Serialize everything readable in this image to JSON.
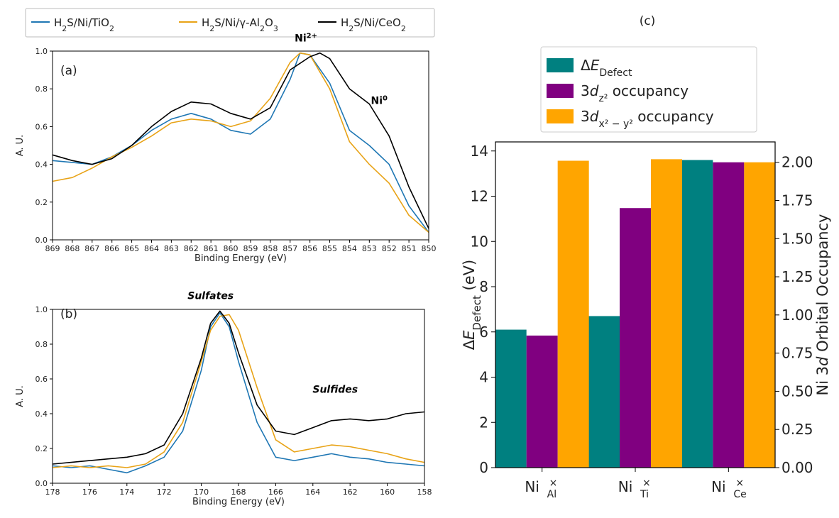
{
  "legend_top": [
    {
      "label": "H2S/Ni/TiO2",
      "parts": [
        "H",
        "2",
        "S/Ni/TiO",
        "2",
        ""
      ],
      "color": "#1f77b4"
    },
    {
      "label": "H2S/Ni/γ-Al2O3",
      "parts": [
        "H",
        "2",
        "S/Ni/γ-Al",
        "2",
        "O",
        "3"
      ],
      "color": "#e8a317"
    },
    {
      "label": "H2S/Ni/CeO2",
      "parts": [
        "H",
        "2",
        "S/Ni/CeO",
        "2",
        ""
      ],
      "color": "#000000"
    }
  ],
  "colors": {
    "bar_defect": "#008080",
    "bar_dz2": "#800080",
    "bar_dx2y2": "#ffa500"
  },
  "chart_data": [
    {
      "type": "line",
      "panel_label": "(a)",
      "xlabel": "Binding Energy (eV)",
      "ylabel": "A. U.",
      "xlim": [
        869,
        850
      ],
      "ylim": [
        0,
        1
      ],
      "xticks": [
        869,
        868,
        867,
        866,
        865,
        864,
        863,
        862,
        861,
        860,
        859,
        858,
        857,
        856,
        855,
        854,
        853,
        852,
        851,
        850
      ],
      "yticks": [
        "0.0",
        "0.2",
        "0.4",
        "0.6",
        "0.8",
        "1.0"
      ],
      "annotations": [
        {
          "text": "Ni",
          "sup": "2+",
          "x": 856.2,
          "y": 1.05
        },
        {
          "text": "Ni",
          "sup": "0",
          "x": 852.5,
          "y": 0.72
        }
      ],
      "series": [
        {
          "color": "#1f77b4",
          "x": [
            869,
            868,
            867,
            866,
            865,
            864,
            863,
            862,
            861,
            860,
            859,
            858,
            857,
            856.5,
            856,
            855,
            854,
            853,
            852,
            851,
            850
          ],
          "y": [
            0.42,
            0.41,
            0.4,
            0.44,
            0.5,
            0.58,
            0.64,
            0.67,
            0.64,
            0.58,
            0.56,
            0.64,
            0.85,
            0.99,
            0.98,
            0.83,
            0.58,
            0.5,
            0.4,
            0.18,
            0.04
          ]
        },
        {
          "color": "#e8a317",
          "x": [
            869,
            868,
            867,
            866,
            865,
            864,
            863,
            862,
            861,
            860,
            859,
            858,
            857,
            856.5,
            856,
            855,
            854,
            853,
            852,
            851,
            850
          ],
          "y": [
            0.31,
            0.33,
            0.38,
            0.44,
            0.49,
            0.55,
            0.62,
            0.64,
            0.63,
            0.6,
            0.63,
            0.75,
            0.94,
            0.99,
            0.98,
            0.8,
            0.52,
            0.4,
            0.3,
            0.13,
            0.04
          ]
        },
        {
          "color": "#000000",
          "x": [
            869,
            868,
            867,
            866,
            865,
            864,
            863,
            862,
            861,
            860,
            859,
            858,
            857,
            856,
            855.5,
            855,
            854,
            853,
            852,
            851,
            850
          ],
          "y": [
            0.45,
            0.42,
            0.4,
            0.43,
            0.5,
            0.6,
            0.68,
            0.73,
            0.72,
            0.67,
            0.64,
            0.7,
            0.9,
            0.97,
            0.99,
            0.96,
            0.8,
            0.72,
            0.55,
            0.28,
            0.06
          ]
        }
      ]
    },
    {
      "type": "line",
      "panel_label": "(b)",
      "xlabel": "Binding Energy (eV)",
      "ylabel": "A. U.",
      "xlim": [
        178,
        158
      ],
      "ylim": [
        0,
        1
      ],
      "xticks": [
        178,
        176,
        174,
        172,
        170,
        168,
        166,
        164,
        162,
        160,
        158
      ],
      "yticks": [
        "0.0",
        "0.2",
        "0.4",
        "0.6",
        "0.8",
        "1.0"
      ],
      "annotations": [
        {
          "text": "Sulfates",
          "x": 169.5,
          "y": 1.06,
          "style": "bolditalic"
        },
        {
          "text": "Sulfides",
          "x": 162.8,
          "y": 0.52,
          "style": "bolditalic"
        }
      ],
      "series": [
        {
          "color": "#1f77b4",
          "x": [
            178,
            177,
            176,
            175,
            174,
            173,
            172,
            171,
            170,
            169.5,
            169,
            168.5,
            168,
            167,
            166,
            165,
            164,
            163,
            162,
            161,
            160,
            159,
            158
          ],
          "y": [
            0.1,
            0.09,
            0.1,
            0.08,
            0.06,
            0.1,
            0.15,
            0.3,
            0.65,
            0.9,
            0.98,
            0.9,
            0.7,
            0.35,
            0.15,
            0.13,
            0.15,
            0.17,
            0.15,
            0.14,
            0.12,
            0.11,
            0.1
          ]
        },
        {
          "color": "#e8a317",
          "x": [
            178,
            177,
            176,
            175,
            174,
            173,
            172,
            171,
            170,
            169.5,
            169,
            168.5,
            168,
            167,
            166,
            165,
            164,
            163,
            162,
            161,
            160,
            159,
            158
          ],
          "y": [
            0.09,
            0.1,
            0.09,
            0.1,
            0.09,
            0.11,
            0.18,
            0.35,
            0.7,
            0.88,
            0.96,
            0.97,
            0.88,
            0.55,
            0.25,
            0.18,
            0.2,
            0.22,
            0.21,
            0.19,
            0.17,
            0.14,
            0.12
          ]
        },
        {
          "color": "#000000",
          "x": [
            178,
            177,
            176,
            175,
            174,
            173,
            172,
            171,
            170,
            169.5,
            169,
            168.5,
            168,
            167,
            166,
            165,
            164,
            163,
            162,
            161,
            160,
            159,
            158
          ],
          "y": [
            0.11,
            0.12,
            0.13,
            0.14,
            0.15,
            0.17,
            0.22,
            0.4,
            0.72,
            0.92,
            0.99,
            0.92,
            0.75,
            0.45,
            0.3,
            0.28,
            0.32,
            0.36,
            0.37,
            0.36,
            0.37,
            0.4,
            0.41
          ]
        }
      ]
    },
    {
      "type": "bar",
      "panel_label": "(c)",
      "categories": [
        {
          "base": "Ni",
          "sup": "×",
          "sub": "Al"
        },
        {
          "base": "Ni",
          "sup": "×",
          "sub": "Ti"
        },
        {
          "base": "Ni",
          "sup": "×",
          "sub": "Ce"
        }
      ],
      "ylabel_left": {
        "pre": "Δ",
        "italic": "E",
        "sub": "Defect",
        "post": " (eV)"
      },
      "ylabel_right": {
        "pre": "Ni 3",
        "italic": "d",
        "post": " Orbital Occupancy"
      },
      "ylim_left": [
        0,
        14.4
      ],
      "ylim_right": [
        0,
        2.1333
      ],
      "yticks_left": [
        "0",
        "2",
        "4",
        "6",
        "8",
        "10",
        "12",
        "14"
      ],
      "yticks_right": [
        "0.00",
        "0.25",
        "0.50",
        "0.75",
        "1.00",
        "1.25",
        "1.50",
        "1.75",
        "2.00"
      ],
      "legend": [
        {
          "pre": "Δ",
          "italic": "E",
          "sub": "Defect",
          "post": ""
        },
        {
          "pre": "3",
          "italic": "d",
          "sub": "z²",
          "post": " occupancy"
        },
        {
          "pre": "3",
          "italic": "d",
          "sub": "x² − y²",
          "post": " occupancy"
        }
      ],
      "series": [
        {
          "axis": "left",
          "values": [
            6.1,
            6.7,
            13.6
          ]
        },
        {
          "axis": "right",
          "values": [
            0.865,
            1.7,
            2.0
          ]
        },
        {
          "axis": "right",
          "values": [
            2.01,
            2.02,
            2.0
          ]
        }
      ]
    }
  ]
}
